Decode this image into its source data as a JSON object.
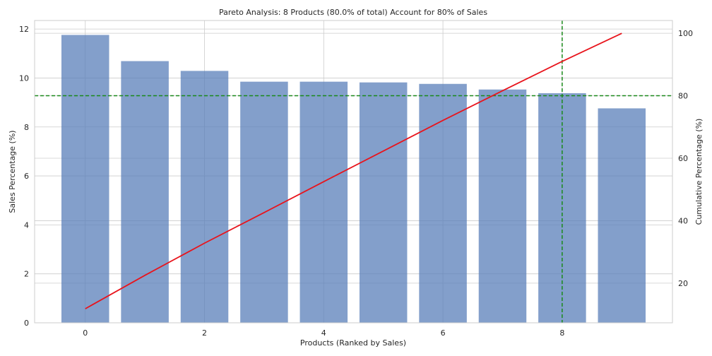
{
  "chart_data": {
    "type": "bar",
    "title": "Pareto Analysis: 8 Products (80.0% of total) Account for 80% of Sales",
    "xlabel": "Products (Ranked by Sales)",
    "ylabel": "Sales Percentage (%)",
    "y2label": "Cumulative Percentage (%)",
    "x": [
      0,
      1,
      2,
      3,
      4,
      5,
      6,
      7,
      8,
      9
    ],
    "x_ticks": [
      "0",
      "2",
      "4",
      "6",
      "8"
    ],
    "y_ticks": [
      "0",
      "2",
      "4",
      "6",
      "8",
      "10",
      "12"
    ],
    "y2_ticks": [
      "20",
      "40",
      "60",
      "80",
      "100"
    ],
    "xlim": [
      -0.85,
      9.85
    ],
    "ylim": [
      0,
      12.35
    ],
    "y2lim": [
      7.3,
      104.1
    ],
    "grid": true,
    "series": [
      {
        "kind": "bar",
        "axis": "left",
        "color": "#5a7fba",
        "values": [
          11.76,
          10.69,
          10.29,
          9.85,
          9.85,
          9.82,
          9.76,
          9.53,
          9.38,
          8.76
        ]
      },
      {
        "kind": "line",
        "axis": "right",
        "color": "#e8141c",
        "values": [
          11.8,
          22.5,
          32.8,
          42.6,
          52.5,
          62.3,
          72.1,
          81.6,
          91.0,
          100.0
        ]
      }
    ],
    "annotations": {
      "threshold_y2": 80,
      "threshold_x": 8,
      "threshold_color": "#1a8a1a"
    }
  }
}
